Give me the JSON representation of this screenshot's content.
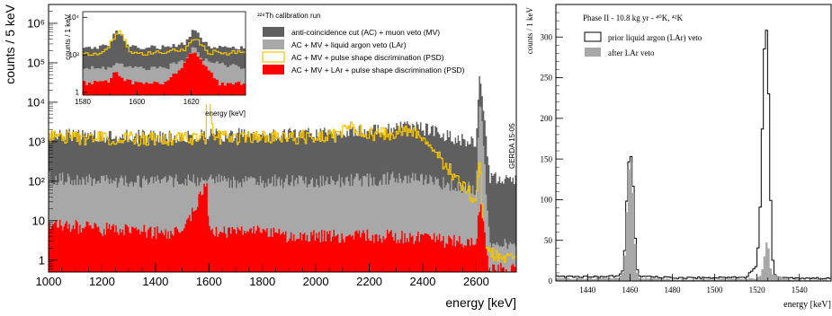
{
  "chart_data": [
    {
      "type": "histogram",
      "panel": "left",
      "title": "²²⁸Th calibration run",
      "xlabel": "energy [keV]",
      "ylabel": "counts / 5 keV",
      "xlim": [
        1000,
        2750
      ],
      "ylim": [
        0.5,
        3000000
      ],
      "yscale": "log",
      "xticks": [
        1000,
        1200,
        1400,
        1600,
        1800,
        2000,
        2200,
        2400,
        2600
      ],
      "yticks": [
        1,
        10,
        100,
        1000,
        10000,
        100000,
        1000000
      ],
      "ytick_labels": [
        "1",
        "10",
        "10²",
        "10³",
        "10⁴",
        "10⁵",
        "10⁶"
      ],
      "stamp": "GERDA 15-05",
      "legend_position": "top-right",
      "series": [
        {
          "name": "anti-coincidence cut (AC) + muon veto (MV)",
          "color": "#5f5f5f",
          "style": "filled",
          "x": [
            1000,
            1100,
            1200,
            1300,
            1400,
            1500,
            1600,
            1700,
            1800,
            1900,
            2000,
            2100,
            2200,
            2300,
            2360,
            2400,
            2500,
            2600,
            2614,
            2650,
            2750
          ],
          "y": [
            1500,
            1400,
            1400,
            1350,
            1350,
            1400,
            1500,
            1500,
            1500,
            1500,
            1600,
            1700,
            1900,
            2300,
            2700,
            2100,
            1300,
            1000,
            80000,
            120,
            120
          ]
        },
        {
          "name": "AC + MV + liquid argon veto (LAr)",
          "color": "#a8a8a8",
          "style": "filled",
          "x": [
            1000,
            1100,
            1200,
            1300,
            1400,
            1500,
            1600,
            1700,
            1800,
            1900,
            2000,
            2100,
            2200,
            2300,
            2400,
            2500,
            2600,
            2614,
            2650,
            2750
          ],
          "y": [
            120,
            110,
            105,
            100,
            100,
            100,
            110,
            100,
            100,
            100,
            100,
            105,
            110,
            120,
            110,
            80,
            60,
            20000,
            3,
            2
          ]
        },
        {
          "name": "AC + MV + pulse shape discrimination (PSD)",
          "color": "#f5c400",
          "style": "line",
          "x": [
            1000,
            1100,
            1200,
            1300,
            1400,
            1500,
            1590,
            1593,
            1620,
            1700,
            1800,
            1900,
            2000,
            2100,
            2103,
            2200,
            2300,
            2380,
            2400,
            2450,
            2500,
            2550,
            2600,
            2614,
            2630,
            2750
          ],
          "y": [
            1300,
            1250,
            1200,
            1180,
            1150,
            1150,
            1200,
            30000,
            1300,
            1250,
            1250,
            1300,
            1350,
            1400,
            2500,
            1500,
            1700,
            1700,
            1000,
            500,
            200,
            80,
            30,
            500,
            1.5,
            1.2
          ]
        },
        {
          "name": "AC + MV + LAr + pulse shape discrimination (PSD)",
          "color": "#ff0000",
          "style": "filled",
          "x": [
            1000,
            1100,
            1200,
            1300,
            1400,
            1500,
            1593,
            1600,
            1700,
            1800,
            1900,
            2000,
            2100,
            2200,
            2300,
            2400,
            2500,
            2600,
            2614,
            2650,
            2750
          ],
          "y": [
            8,
            7,
            6,
            6,
            5,
            5,
            80,
            6,
            5,
            5,
            4,
            4,
            4,
            4,
            4,
            3.5,
            3,
            3,
            30,
            0.6,
            0.6
          ]
        }
      ]
    },
    {
      "type": "histogram",
      "panel": "inset",
      "xlabel": "energy [keV]",
      "ylabel": "counts / 1 keV",
      "xlim": [
        1580,
        1640
      ],
      "ylim": [
        0.7,
        20000
      ],
      "yscale": "log",
      "xticks": [
        1580,
        1600,
        1620
      ],
      "yticks": [
        1,
        100,
        10000
      ],
      "ytick_labels": [
        "1",
        "10²",
        "10⁴"
      ],
      "series": [
        {
          "name": "AC + MV",
          "color": "#5f5f5f",
          "style": "filled",
          "x": [
            1580,
            1585,
            1590,
            1592,
            1594,
            1598,
            1605,
            1612,
            1618,
            1620,
            1621,
            1623,
            1626,
            1632,
            1640
          ],
          "y": [
            200,
            220,
            400,
            2000,
            1200,
            250,
            250,
            250,
            400,
            1500,
            3000,
            1200,
            300,
            250,
            250
          ]
        },
        {
          "name": "AC + MV + LAr",
          "color": "#a8a8a8",
          "style": "filled",
          "x": [
            1580,
            1590,
            1593,
            1596,
            1610,
            1618,
            1621,
            1624,
            1640
          ],
          "y": [
            18,
            20,
            40,
            20,
            18,
            60,
            400,
            60,
            18
          ]
        },
        {
          "name": "AC + MV + PSD",
          "color": "#f5c400",
          "style": "line",
          "x": [
            1580,
            1588,
            1591,
            1593,
            1595,
            1598,
            1610,
            1618,
            1620,
            1621,
            1623,
            1626,
            1640
          ],
          "y": [
            120,
            130,
            600,
            1800,
            700,
            130,
            125,
            200,
            500,
            900,
            450,
            140,
            120
          ]
        },
        {
          "name": "AC + MV + LAr + PSD",
          "color": "#ff0000",
          "style": "filled",
          "x": [
            1580,
            1590,
            1592,
            1594,
            1600,
            1610,
            1618,
            1621,
            1624,
            1630,
            1640
          ],
          "y": [
            3,
            4,
            12,
            5,
            3,
            3,
            40,
            200,
            40,
            3,
            3
          ]
        }
      ]
    },
    {
      "type": "histogram",
      "panel": "right",
      "title": "Phase II - 10.8 kg yr - ⁴⁰K, ⁴²K",
      "xlabel": "energy [keV]",
      "ylabel": "counts / 1 keV",
      "xlim": [
        1425,
        1555
      ],
      "ylim": [
        0,
        340
      ],
      "yscale": "linear",
      "xticks": [
        1440,
        1460,
        1480,
        1500,
        1520,
        1540
      ],
      "yticks": [
        0,
        50,
        100,
        150,
        200,
        250,
        300
      ],
      "legend_position": "top-left",
      "series": [
        {
          "name": "prior liquid argon (LAr) veto",
          "color": "#000000",
          "style": "line",
          "x": [
            1425,
            1440,
            1455,
            1457,
            1458,
            1459,
            1460,
            1461,
            1462,
            1463,
            1464,
            1470,
            1480,
            1500,
            1515,
            1520,
            1521,
            1522,
            1523,
            1524,
            1525,
            1526,
            1527,
            1528,
            1529,
            1535,
            1555
          ],
          "y": [
            6,
            5,
            6,
            15,
            60,
            135,
            158,
            150,
            85,
            20,
            6,
            5,
            4,
            4,
            5,
            20,
            60,
            120,
            255,
            318,
            300,
            160,
            40,
            10,
            5,
            4,
            3
          ]
        },
        {
          "name": "after LAr veto",
          "color": "#a8a8a8",
          "style": "filled",
          "x": [
            1425,
            1440,
            1455,
            1457,
            1458,
            1459,
            1460,
            1461,
            1462,
            1463,
            1464,
            1470,
            1480,
            1500,
            1520,
            1522,
            1523,
            1524,
            1525,
            1526,
            1527,
            1535,
            1555
          ],
          "y": [
            3,
            3,
            4,
            12,
            50,
            120,
            152,
            140,
            75,
            15,
            4,
            3,
            2,
            2,
            3,
            8,
            20,
            40,
            55,
            25,
            8,
            2,
            1
          ]
        }
      ]
    }
  ]
}
